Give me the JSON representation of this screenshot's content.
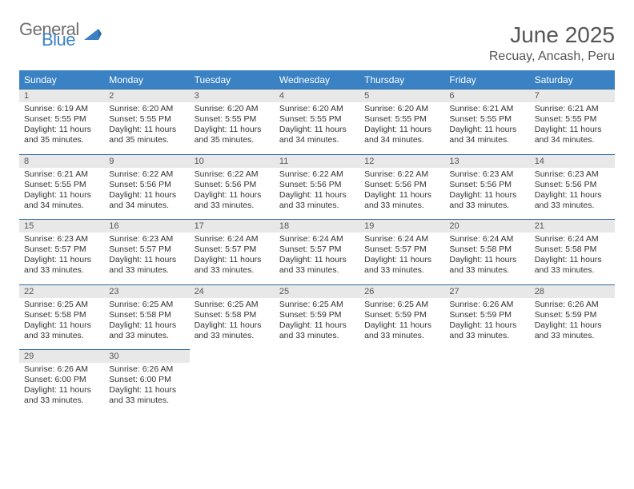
{
  "logo": {
    "general": "General",
    "blue": "Blue"
  },
  "title": "June 2025",
  "location": "Recuay, Ancash, Peru",
  "colors": {
    "header_bg": "#3b82c4",
    "header_text": "#ffffff",
    "daynum_bg": "#e8e8e8",
    "row_border": "#2d6aa0",
    "body_text": "#333333",
    "title_text": "#555555",
    "logo_gray": "#6f6f6f",
    "logo_blue": "#3b82c4"
  },
  "days_of_week": [
    "Sunday",
    "Monday",
    "Tuesday",
    "Wednesday",
    "Thursday",
    "Friday",
    "Saturday"
  ],
  "cells": [
    {
      "n": "1",
      "s": "Sunrise: 6:19 AM",
      "t": "Sunset: 5:55 PM",
      "d1": "Daylight: 11 hours",
      "d2": "and 35 minutes."
    },
    {
      "n": "2",
      "s": "Sunrise: 6:20 AM",
      "t": "Sunset: 5:55 PM",
      "d1": "Daylight: 11 hours",
      "d2": "and 35 minutes."
    },
    {
      "n": "3",
      "s": "Sunrise: 6:20 AM",
      "t": "Sunset: 5:55 PM",
      "d1": "Daylight: 11 hours",
      "d2": "and 35 minutes."
    },
    {
      "n": "4",
      "s": "Sunrise: 6:20 AM",
      "t": "Sunset: 5:55 PM",
      "d1": "Daylight: 11 hours",
      "d2": "and 34 minutes."
    },
    {
      "n": "5",
      "s": "Sunrise: 6:20 AM",
      "t": "Sunset: 5:55 PM",
      "d1": "Daylight: 11 hours",
      "d2": "and 34 minutes."
    },
    {
      "n": "6",
      "s": "Sunrise: 6:21 AM",
      "t": "Sunset: 5:55 PM",
      "d1": "Daylight: 11 hours",
      "d2": "and 34 minutes."
    },
    {
      "n": "7",
      "s": "Sunrise: 6:21 AM",
      "t": "Sunset: 5:55 PM",
      "d1": "Daylight: 11 hours",
      "d2": "and 34 minutes."
    },
    {
      "n": "8",
      "s": "Sunrise: 6:21 AM",
      "t": "Sunset: 5:55 PM",
      "d1": "Daylight: 11 hours",
      "d2": "and 34 minutes."
    },
    {
      "n": "9",
      "s": "Sunrise: 6:22 AM",
      "t": "Sunset: 5:56 PM",
      "d1": "Daylight: 11 hours",
      "d2": "and 34 minutes."
    },
    {
      "n": "10",
      "s": "Sunrise: 6:22 AM",
      "t": "Sunset: 5:56 PM",
      "d1": "Daylight: 11 hours",
      "d2": "and 33 minutes."
    },
    {
      "n": "11",
      "s": "Sunrise: 6:22 AM",
      "t": "Sunset: 5:56 PM",
      "d1": "Daylight: 11 hours",
      "d2": "and 33 minutes."
    },
    {
      "n": "12",
      "s": "Sunrise: 6:22 AM",
      "t": "Sunset: 5:56 PM",
      "d1": "Daylight: 11 hours",
      "d2": "and 33 minutes."
    },
    {
      "n": "13",
      "s": "Sunrise: 6:23 AM",
      "t": "Sunset: 5:56 PM",
      "d1": "Daylight: 11 hours",
      "d2": "and 33 minutes."
    },
    {
      "n": "14",
      "s": "Sunrise: 6:23 AM",
      "t": "Sunset: 5:56 PM",
      "d1": "Daylight: 11 hours",
      "d2": "and 33 minutes."
    },
    {
      "n": "15",
      "s": "Sunrise: 6:23 AM",
      "t": "Sunset: 5:57 PM",
      "d1": "Daylight: 11 hours",
      "d2": "and 33 minutes."
    },
    {
      "n": "16",
      "s": "Sunrise: 6:23 AM",
      "t": "Sunset: 5:57 PM",
      "d1": "Daylight: 11 hours",
      "d2": "and 33 minutes."
    },
    {
      "n": "17",
      "s": "Sunrise: 6:24 AM",
      "t": "Sunset: 5:57 PM",
      "d1": "Daylight: 11 hours",
      "d2": "and 33 minutes."
    },
    {
      "n": "18",
      "s": "Sunrise: 6:24 AM",
      "t": "Sunset: 5:57 PM",
      "d1": "Daylight: 11 hours",
      "d2": "and 33 minutes."
    },
    {
      "n": "19",
      "s": "Sunrise: 6:24 AM",
      "t": "Sunset: 5:57 PM",
      "d1": "Daylight: 11 hours",
      "d2": "and 33 minutes."
    },
    {
      "n": "20",
      "s": "Sunrise: 6:24 AM",
      "t": "Sunset: 5:58 PM",
      "d1": "Daylight: 11 hours",
      "d2": "and 33 minutes."
    },
    {
      "n": "21",
      "s": "Sunrise: 6:24 AM",
      "t": "Sunset: 5:58 PM",
      "d1": "Daylight: 11 hours",
      "d2": "and 33 minutes."
    },
    {
      "n": "22",
      "s": "Sunrise: 6:25 AM",
      "t": "Sunset: 5:58 PM",
      "d1": "Daylight: 11 hours",
      "d2": "and 33 minutes."
    },
    {
      "n": "23",
      "s": "Sunrise: 6:25 AM",
      "t": "Sunset: 5:58 PM",
      "d1": "Daylight: 11 hours",
      "d2": "and 33 minutes."
    },
    {
      "n": "24",
      "s": "Sunrise: 6:25 AM",
      "t": "Sunset: 5:58 PM",
      "d1": "Daylight: 11 hours",
      "d2": "and 33 minutes."
    },
    {
      "n": "25",
      "s": "Sunrise: 6:25 AM",
      "t": "Sunset: 5:59 PM",
      "d1": "Daylight: 11 hours",
      "d2": "and 33 minutes."
    },
    {
      "n": "26",
      "s": "Sunrise: 6:25 AM",
      "t": "Sunset: 5:59 PM",
      "d1": "Daylight: 11 hours",
      "d2": "and 33 minutes."
    },
    {
      "n": "27",
      "s": "Sunrise: 6:26 AM",
      "t": "Sunset: 5:59 PM",
      "d1": "Daylight: 11 hours",
      "d2": "and 33 minutes."
    },
    {
      "n": "28",
      "s": "Sunrise: 6:26 AM",
      "t": "Sunset: 5:59 PM",
      "d1": "Daylight: 11 hours",
      "d2": "and 33 minutes."
    },
    {
      "n": "29",
      "s": "Sunrise: 6:26 AM",
      "t": "Sunset: 6:00 PM",
      "d1": "Daylight: 11 hours",
      "d2": "and 33 minutes."
    },
    {
      "n": "30",
      "s": "Sunrise: 6:26 AM",
      "t": "Sunset: 6:00 PM",
      "d1": "Daylight: 11 hours",
      "d2": "and 33 minutes."
    }
  ]
}
